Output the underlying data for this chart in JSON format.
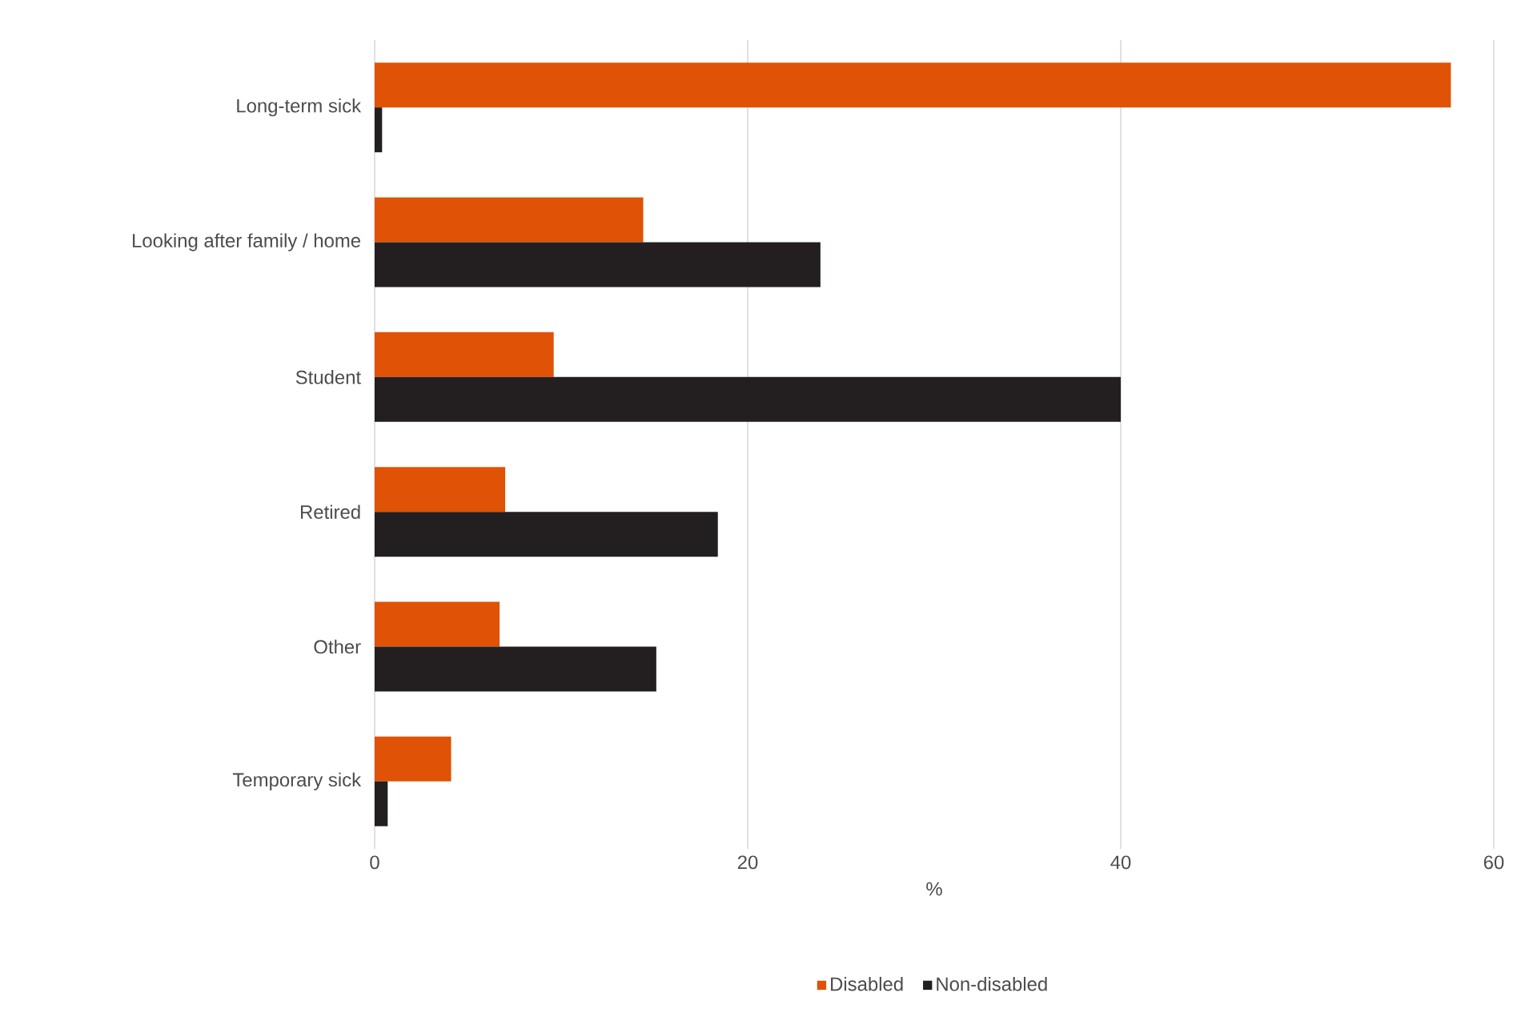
{
  "chart_data": {
    "type": "bar",
    "orientation": "horizontal",
    "categories": [
      "Long-term sick",
      "Looking after family / home",
      "Student",
      "Retired",
      "Other",
      "Temporary sick"
    ],
    "series": [
      {
        "name": "Disabled",
        "color": "#e05206",
        "values": [
          57.7,
          14.4,
          9.6,
          7.0,
          6.7,
          4.1
        ]
      },
      {
        "name": "Non-disabled",
        "color": "#231f20",
        "values": [
          0.4,
          23.9,
          40.0,
          18.4,
          15.1,
          0.7
        ]
      }
    ],
    "xlabel": "%",
    "xlim": [
      0,
      60
    ],
    "xticks": [
      0,
      20,
      40,
      60
    ],
    "grid": "x",
    "legend": "bottom"
  }
}
